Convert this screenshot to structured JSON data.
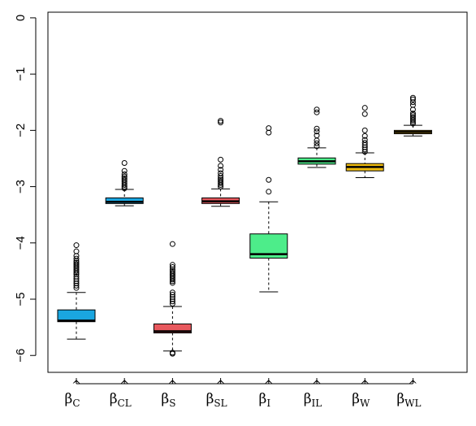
{
  "chart_data": {
    "type": "box",
    "ylim": [
      -6.3,
      0.1
    ],
    "y_ticks": [
      0,
      -1,
      -2,
      -3,
      -4,
      -5,
      -6
    ],
    "grid": false,
    "legend": "none",
    "categories": [
      {
        "hat": "^",
        "base": "β",
        "sub": "C"
      },
      {
        "hat": "^",
        "base": "β",
        "sub": "CL"
      },
      {
        "hat": "^",
        "base": "β",
        "sub": "S"
      },
      {
        "hat": "^",
        "base": "β",
        "sub": "SL"
      },
      {
        "hat": "^",
        "base": "β",
        "sub": "I"
      },
      {
        "hat": "^",
        "base": "β",
        "sub": "IL"
      },
      {
        "hat": "^",
        "base": "β",
        "sub": "W"
      },
      {
        "hat": "^",
        "base": "β",
        "sub": "WL"
      }
    ],
    "boxes": [
      {
        "color": "#1aa6e0",
        "whisker_low": -5.71,
        "q1": -5.4,
        "median": -5.38,
        "q3": -5.19,
        "whisker_high": -4.88,
        "outliers": [
          -4.04,
          -4.15,
          -4.23,
          -4.28,
          -4.32,
          -4.35,
          -4.38,
          -4.41,
          -4.44,
          -4.47,
          -4.5,
          -4.53,
          -4.56,
          -4.6,
          -4.64,
          -4.68,
          -4.72,
          -4.76,
          -4.8
        ]
      },
      {
        "color": "#1aa6e0",
        "whisker_low": -3.34,
        "q1": -3.3,
        "median": -3.27,
        "q3": -3.2,
        "whisker_high": -3.05,
        "outliers": [
          -2.58,
          -2.72,
          -2.78,
          -2.82,
          -2.85,
          -2.88,
          -2.91,
          -2.94,
          -2.97,
          -3.0,
          -3.03
        ]
      },
      {
        "color": "#e8595e",
        "whisker_low": -5.92,
        "q1": -5.6,
        "median": -5.57,
        "q3": -5.44,
        "whisker_high": -5.13,
        "outliers": [
          -4.02,
          -4.39,
          -4.43,
          -4.47,
          -4.5,
          -4.53,
          -4.56,
          -4.59,
          -4.62,
          -4.65,
          -4.68,
          -4.71,
          -4.88,
          -4.92,
          -4.96,
          -5.0,
          -5.04,
          -5.08,
          -5.95,
          -5.97
        ]
      },
      {
        "color": "#e8595e",
        "whisker_low": -3.35,
        "q1": -3.3,
        "median": -3.26,
        "q3": -3.2,
        "whisker_high": -3.04,
        "outliers": [
          -1.83,
          -1.86,
          -2.52,
          -2.63,
          -2.7,
          -2.76,
          -2.81,
          -2.85,
          -2.88,
          -2.91,
          -2.94,
          -2.97,
          -3.0
        ]
      },
      {
        "color": "#4ded8a",
        "whisker_low": -4.87,
        "q1": -4.27,
        "median": -4.2,
        "q3": -3.84,
        "whisker_high": -3.27,
        "outliers": [
          -1.96,
          -2.04,
          -2.88,
          -3.09
        ]
      },
      {
        "color": "#4ded8a",
        "whisker_low": -2.66,
        "q1": -2.6,
        "median": -2.55,
        "q3": -2.49,
        "whisker_high": -2.31,
        "outliers": [
          -1.63,
          -1.68,
          -1.97,
          -2.02,
          -2.09,
          -2.18,
          -2.23,
          -2.28
        ]
      },
      {
        "color": "#f0bd10",
        "whisker_low": -2.84,
        "q1": -2.72,
        "median": -2.65,
        "q3": -2.59,
        "whisker_high": -2.4,
        "outliers": [
          -1.6,
          -1.71,
          -2.0,
          -2.1,
          -2.17,
          -2.22,
          -2.26,
          -2.3,
          -2.34,
          -2.38
        ]
      },
      {
        "color": "#f0bd10",
        "whisker_low": -2.1,
        "q1": -2.06,
        "median": -2.03,
        "q3": -2.0,
        "whisker_high": -1.91,
        "outliers": [
          -1.42,
          -1.45,
          -1.5,
          -1.55,
          -1.63,
          -1.7,
          -1.73,
          -1.76,
          -1.79,
          -1.82,
          -1.85,
          -1.88
        ]
      }
    ]
  }
}
